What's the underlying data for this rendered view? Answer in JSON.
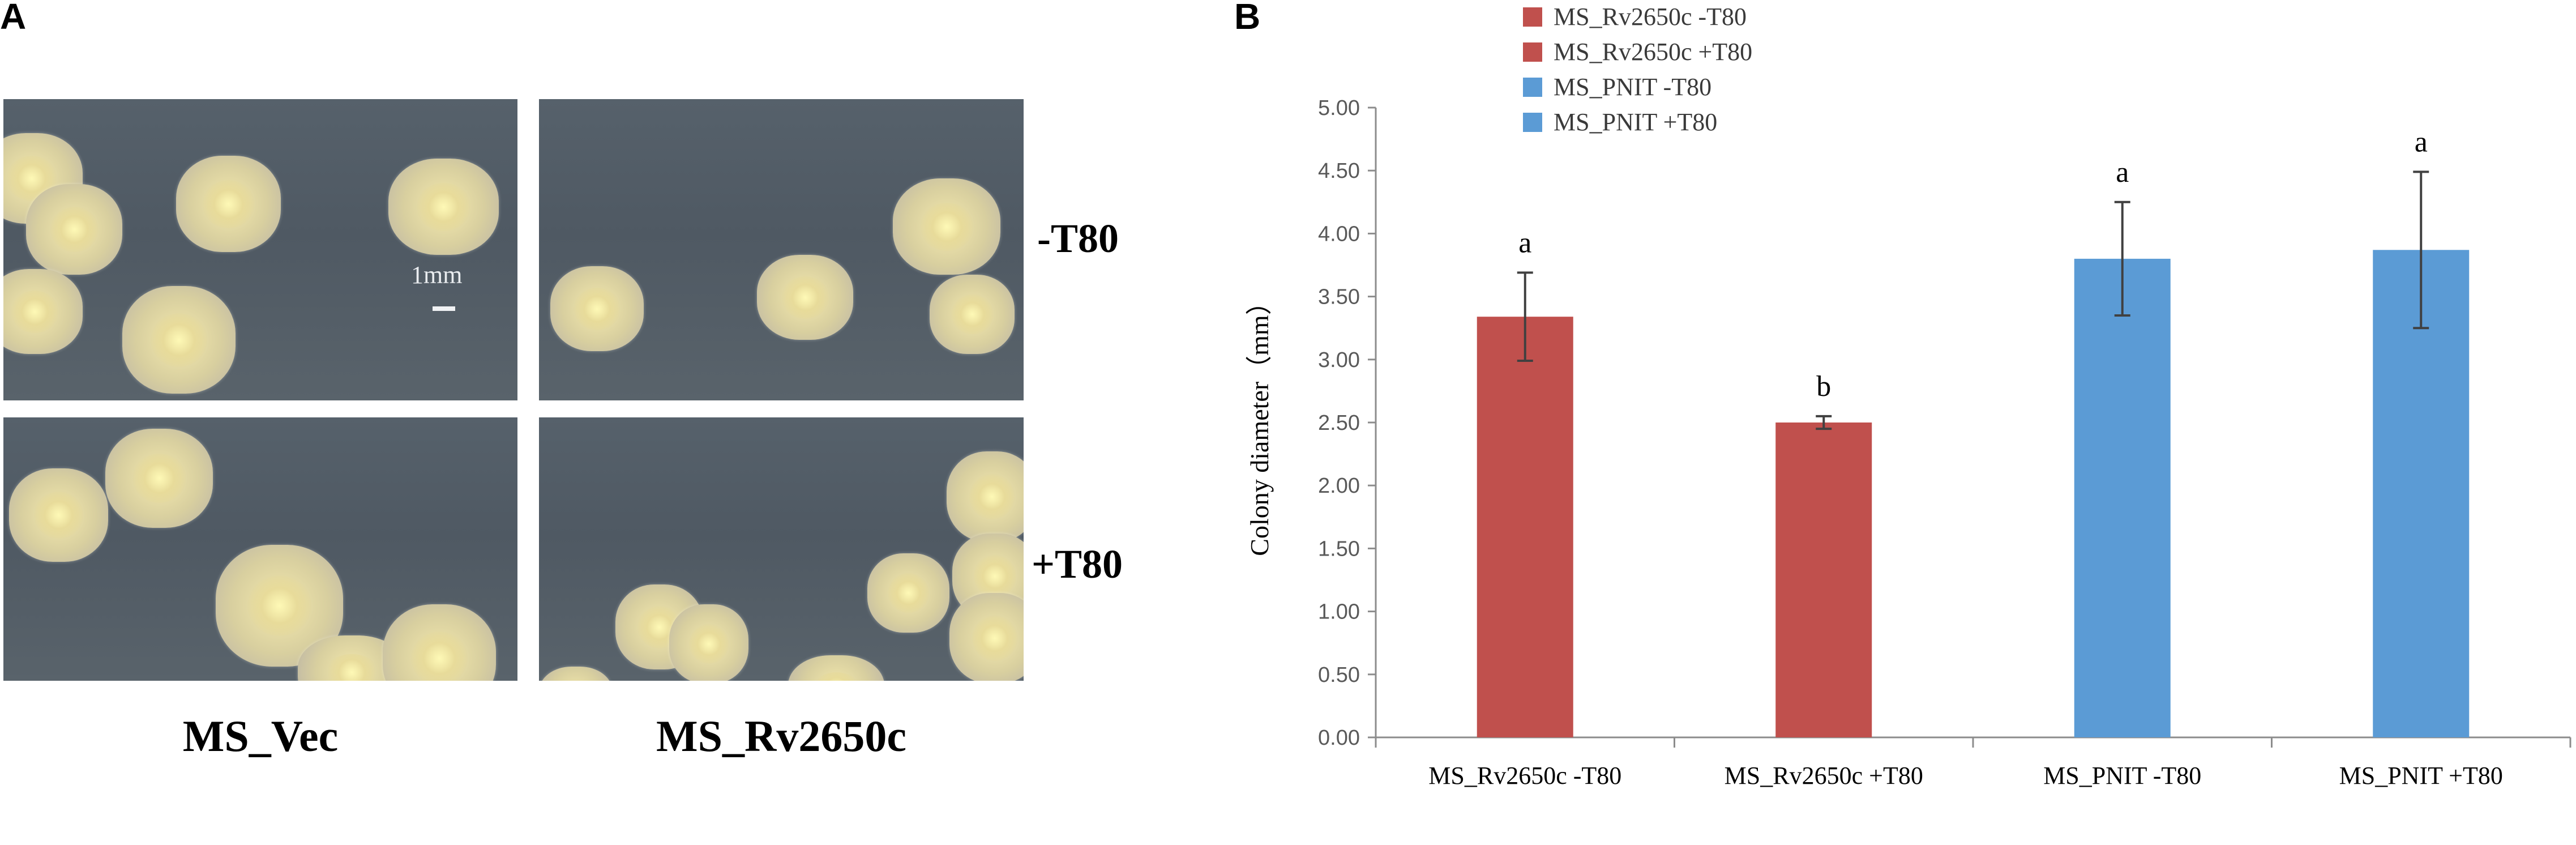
{
  "panel_a": {
    "letter": "A",
    "row_labels": [
      "-T80",
      "+T80"
    ],
    "column_labels": [
      "MS_Vec",
      "MS_Rv2650c"
    ],
    "scale_bar_label": "1mm"
  },
  "panel_b": {
    "letter": "B"
  },
  "chart_data": {
    "type": "bar",
    "title": "",
    "xlabel": "",
    "ylabel": "Colony diameter（mm）",
    "ylim": [
      0,
      5
    ],
    "yticks": [
      "0.00",
      "0.50",
      "1.00",
      "1.50",
      "2.00",
      "2.50",
      "3.00",
      "3.50",
      "4.00",
      "4.50",
      "5.00"
    ],
    "categories": [
      "MS_Rv2650c -T80",
      "MS_Rv2650c +T80",
      "MS_PNIT -T80",
      "MS_PNIT +T80"
    ],
    "values": [
      3.34,
      2.5,
      3.8,
      3.87
    ],
    "error": [
      0.35,
      0.05,
      0.45,
      0.62
    ],
    "significance_labels": [
      "a",
      "b",
      "a",
      "a"
    ],
    "colors": [
      "#c0504d",
      "#c0504d",
      "#5b9bd5",
      "#5b9bd5"
    ],
    "legend": {
      "placement": "top",
      "entries": [
        {
          "label": "MS_Rv2650c -T80",
          "color": "#c0504d"
        },
        {
          "label": "MS_Rv2650c +T80",
          "color": "#c0504d"
        },
        {
          "label": "MS_PNIT -T80",
          "color": "#5b9bd5"
        },
        {
          "label": "MS_PNIT +T80",
          "color": "#5b9bd5"
        }
      ]
    },
    "grid": false
  }
}
